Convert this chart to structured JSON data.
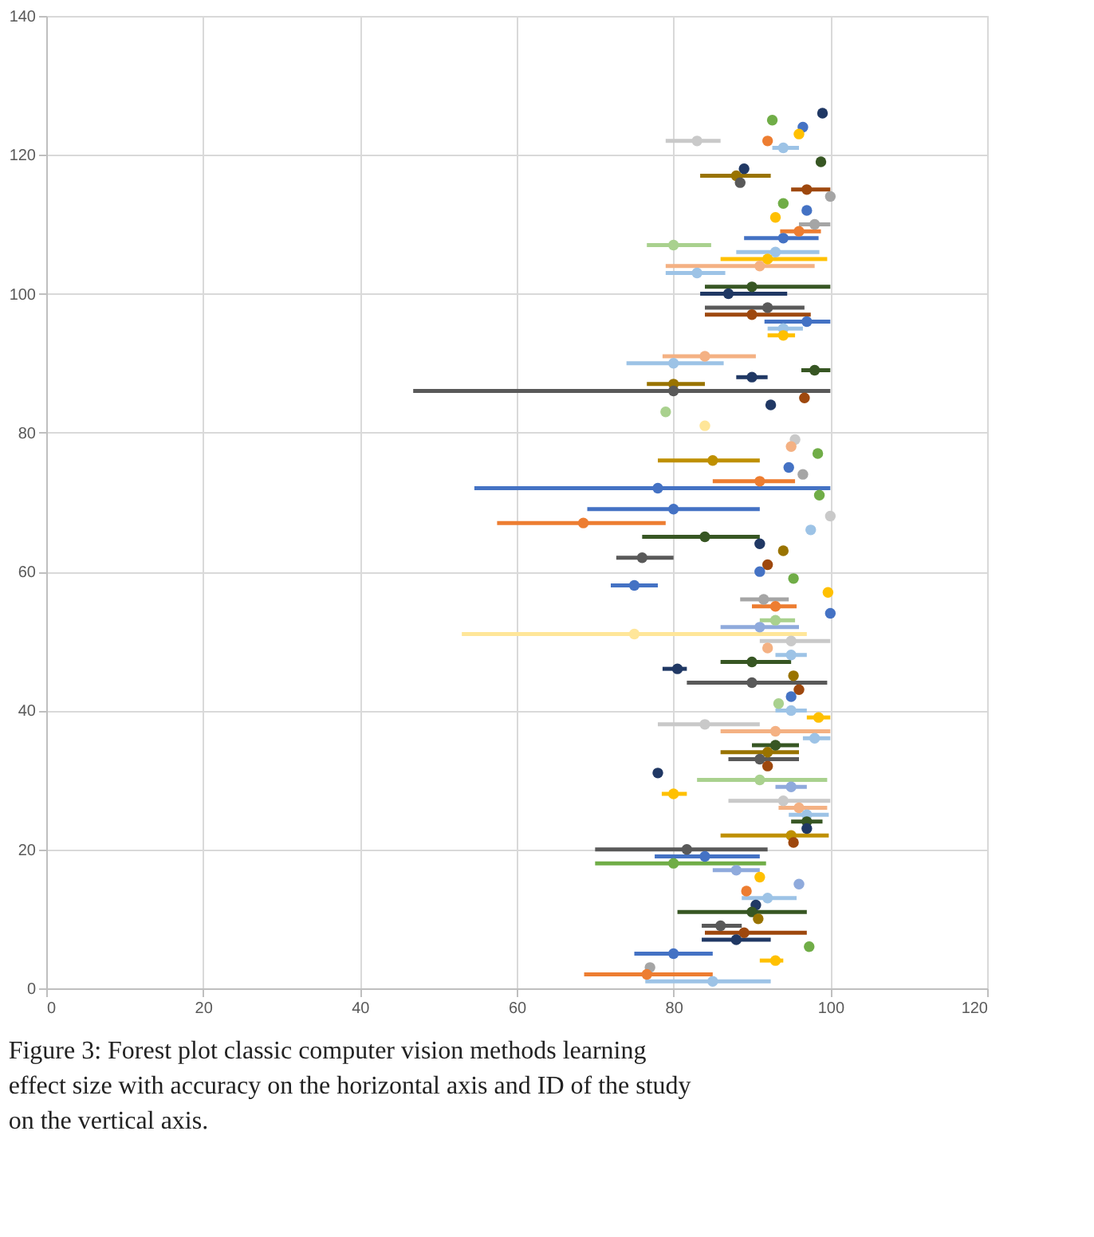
{
  "chart_data": {
    "type": "scatter",
    "marker": "circle",
    "grid": true,
    "xlim": [
      0,
      120
    ],
    "xticks": [
      0,
      20,
      40,
      60,
      80,
      100,
      120
    ],
    "ylim": [
      0,
      140
    ],
    "yticks": [
      0,
      20,
      40,
      60,
      80,
      100,
      120,
      140
    ],
    "annotations": [
      "Figure 3: Forest plot classic computer vision methods learning effect size with accuracy on the horizontal axis and ID of the study on the vertical axis."
    ],
    "values": [
      126,
      125,
      124,
      123,
      122,
      122,
      121,
      119,
      118,
      117,
      116,
      115,
      114,
      113,
      112,
      111,
      110,
      109,
      108,
      107,
      106,
      105,
      104,
      103,
      101,
      100,
      98,
      97,
      96,
      95,
      94,
      91,
      90,
      89,
      88,
      87,
      86,
      85,
      84,
      83,
      81,
      79,
      78,
      77,
      76,
      75,
      74,
      73,
      72,
      71,
      69,
      68,
      67,
      66,
      65,
      64,
      63,
      62,
      61,
      60,
      59,
      58,
      57,
      56,
      55,
      54,
      53,
      52,
      51,
      50,
      49,
      48,
      47,
      46,
      45,
      44,
      43,
      42,
      41,
      40,
      39,
      38,
      37,
      36,
      35,
      34,
      33,
      32,
      31,
      30,
      29,
      28,
      27,
      26,
      25,
      24,
      23,
      22,
      21,
      20,
      19,
      18,
      17,
      16,
      15,
      14,
      13,
      12,
      11,
      10,
      9,
      8,
      7,
      6,
      5,
      4,
      3,
      2,
      1
    ],
    "x": [
      99,
      92.6,
      96.5,
      96,
      83,
      92,
      94,
      98.8,
      89,
      88,
      88.5,
      97,
      100,
      94,
      97,
      93,
      98,
      96,
      94,
      80,
      93,
      92,
      91,
      83,
      90,
      87,
      92,
      90,
      97,
      94,
      94,
      84,
      80,
      98,
      90,
      80,
      80,
      96.7,
      92.4,
      79,
      84,
      95.5,
      95,
      98.4,
      85,
      94.7,
      96.5,
      91,
      78,
      98.6,
      80,
      100,
      68.5,
      97.5,
      84,
      91,
      94,
      76,
      92,
      91,
      95.3,
      75,
      99.7,
      91.5,
      93,
      100,
      93,
      91,
      75,
      95,
      92,
      95,
      90,
      80.5,
      95.3,
      90,
      96,
      95,
      93.4,
      95,
      98.5,
      84,
      93,
      98,
      93,
      92,
      91,
      92,
      78,
      91,
      95,
      80,
      94,
      96,
      97,
      97,
      97,
      95,
      95.3,
      81.7,
      84,
      80,
      88,
      91,
      96,
      89.3,
      92,
      90.5,
      90,
      90.8,
      86,
      89,
      88,
      97.3,
      80,
      93,
      77,
      76.6,
      85
    ],
    "xerrors": [
      null,
      null,
      null,
      null,
      [
        79,
        86
      ],
      null,
      [
        92.6,
        96
      ],
      null,
      null,
      [
        83.4,
        92.4
      ],
      null,
      [
        95,
        100
      ],
      null,
      null,
      null,
      null,
      [
        96,
        100
      ],
      [
        93.6,
        98.8
      ],
      [
        89,
        98.5
      ],
      [
        76.6,
        84.8
      ],
      [
        88,
        98.6
      ],
      [
        86,
        99.6
      ],
      [
        79,
        98
      ],
      [
        79,
        86.6
      ],
      [
        84,
        100
      ],
      [
        83.4,
        94.5
      ],
      [
        84,
        96.7
      ],
      [
        84,
        97.5
      ],
      [
        91.6,
        100
      ],
      [
        92,
        96.5
      ],
      [
        92,
        95.5
      ],
      [
        78.6,
        90.5
      ],
      [
        74,
        86.4
      ],
      [
        96.3,
        100
      ],
      [
        88,
        92
      ],
      [
        76.6,
        84
      ],
      [
        46.8,
        100
      ],
      null,
      null,
      null,
      null,
      null,
      null,
      null,
      [
        78,
        91
      ],
      null,
      null,
      [
        85,
        95.5
      ],
      [
        54.6,
        100
      ],
      null,
      [
        69,
        91
      ],
      null,
      [
        57.5,
        79
      ],
      null,
      [
        76,
        91
      ],
      null,
      null,
      [
        72.7,
        80
      ],
      null,
      null,
      null,
      [
        72,
        78
      ],
      null,
      [
        88.5,
        94.7
      ],
      [
        90,
        95.7
      ],
      null,
      [
        91,
        95.5
      ],
      [
        86,
        96
      ],
      [
        53,
        97
      ],
      [
        91,
        100
      ],
      null,
      [
        93,
        97
      ],
      [
        86,
        95
      ],
      [
        78.6,
        81.7
      ],
      null,
      [
        81.7,
        99.6
      ],
      null,
      null,
      null,
      [
        93,
        97
      ],
      [
        97,
        100
      ],
      [
        78,
        91
      ],
      [
        86,
        100
      ],
      [
        96.5,
        100
      ],
      [
        90,
        96
      ],
      [
        86,
        96
      ],
      [
        87,
        96
      ],
      null,
      null,
      [
        83,
        99.6
      ],
      [
        93,
        97
      ],
      [
        78.5,
        81.7
      ],
      [
        87,
        100
      ],
      [
        93.4,
        99.6
      ],
      [
        94.7,
        99.8
      ],
      [
        95,
        99
      ],
      null,
      [
        86,
        99.8
      ],
      null,
      [
        70,
        92
      ],
      [
        77.6,
        91
      ],
      [
        70,
        91.8
      ],
      [
        85,
        91
      ],
      null,
      null,
      null,
      [
        88.7,
        95.7
      ],
      null,
      [
        80.5,
        97
      ],
      null,
      [
        83.6,
        88.7
      ],
      [
        84,
        97
      ],
      [
        83.6,
        92.4
      ],
      null,
      [
        75,
        85
      ],
      [
        91,
        94
      ],
      null,
      [
        68.6,
        85
      ],
      [
        76.4,
        92.4
      ]
    ],
    "colors": [
      "#203864",
      "#70ad47",
      "#4472c4",
      "#ffc000",
      "#c9c9c9",
      "#ed7d31",
      "#9dc3e6",
      "#375623",
      "#203864",
      "#997300",
      "#595959",
      "#9e480e",
      "#a5a5a5",
      "#70ad47",
      "#4472c4",
      "#ffc000",
      "#a5a5a5",
      "#ed7d31",
      "#4472c4",
      "#a9d18e",
      "#9dc3e6",
      "#ffc000",
      "#f4b183",
      "#9dc3e6",
      "#375623",
      "#203864",
      "#595959",
      "#9e480e",
      "#4472c4",
      "#9dc3e6",
      "#ffc000",
      "#f4b183",
      "#9dc3e6",
      "#375623",
      "#203864",
      "#997300",
      "#595959",
      "#9e480e",
      "#203864",
      "#a9d18e",
      "#ffe699",
      "#c9c9c9",
      "#f4b183",
      "#70ad47",
      "#bf9000",
      "#4472c4",
      "#a5a5a5",
      "#ed7d31",
      "#4472c4",
      "#70ad47",
      "#4472c4",
      "#c9c9c9",
      "#ed7d31",
      "#9dc3e6",
      "#375623",
      "#203864",
      "#997300",
      "#595959",
      "#9e480e",
      "#4472c4",
      "#70ad47",
      "#4472c4",
      "#ffc000",
      "#a5a5a5",
      "#ed7d31",
      "#4472c4",
      "#a9d18e",
      "#8faadc",
      "#ffe699",
      "#c9c9c9",
      "#f4b183",
      "#9dc3e6",
      "#375623",
      "#203864",
      "#997300",
      "#595959",
      "#9e480e",
      "#4472c4",
      "#a9d18e",
      "#9dc3e6",
      "#ffc000",
      "#c9c9c9",
      "#f4b183",
      "#9dc3e6",
      "#375623",
      "#997300",
      "#595959",
      "#9e480e",
      "#203864",
      "#a9d18e",
      "#8faadc",
      "#ffc000",
      "#c9c9c9",
      "#f4b183",
      "#9dc3e6",
      "#375623",
      "#203864",
      "#bf9000",
      "#9e480e",
      "#595959",
      "#4472c4",
      "#70ad47",
      "#8faadc",
      "#ffc000",
      "#8faadc",
      "#ed7d31",
      "#9dc3e6",
      "#203864",
      "#375623",
      "#997300",
      "#595959",
      "#9e480e",
      "#203864",
      "#70ad47",
      "#4472c4",
      "#ffc000",
      "#a5a5a5",
      "#ed7d31",
      "#9dc3e6"
    ]
  }
}
